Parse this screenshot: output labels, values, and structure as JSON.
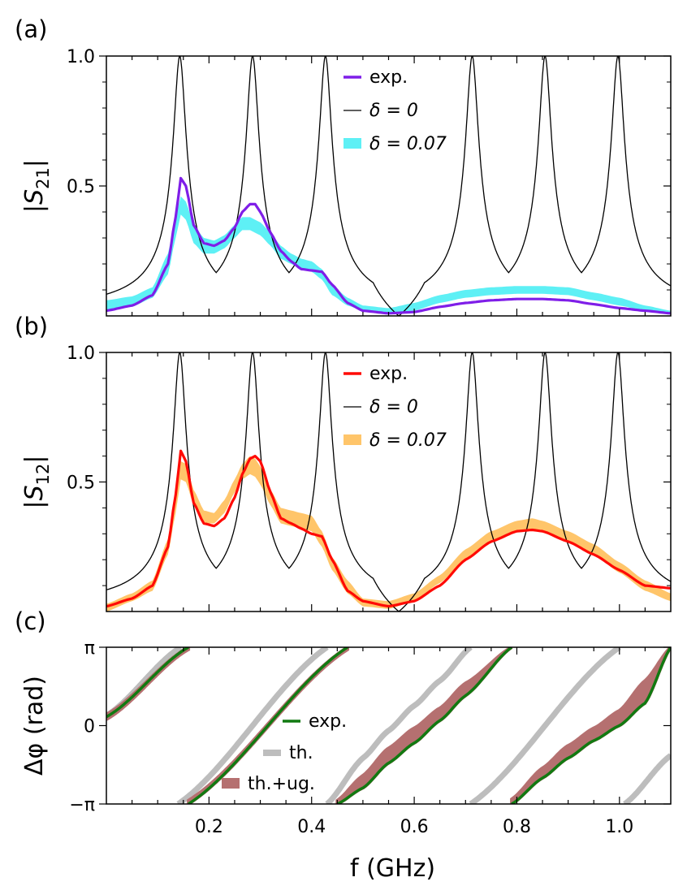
{
  "chart_data": [
    {
      "panel": "(a)",
      "type": "line",
      "ylabel_base": "|S",
      "ylabel_sub": "21",
      "ylabel_end": "|",
      "xlim": [
        0.0,
        1.1
      ],
      "ylim": [
        0.0,
        1.0
      ],
      "yticks": [
        {
          "value": 0.5,
          "label": "0.5"
        },
        {
          "value": 1.0,
          "label": "1.0"
        }
      ],
      "legend": {
        "position": "upper-center",
        "entries": [
          "exp.",
          "δ = 0",
          "δ = 0.07"
        ]
      },
      "colors": {
        "exp": "#7f1ee8",
        "theory": "#000000",
        "band": "#5ef0f5"
      },
      "series": [
        {
          "name": "exp.",
          "x": [
            0.0,
            0.05,
            0.09,
            0.12,
            0.135,
            0.145,
            0.155,
            0.17,
            0.19,
            0.21,
            0.23,
            0.25,
            0.265,
            0.28,
            0.29,
            0.3,
            0.32,
            0.34,
            0.36,
            0.38,
            0.4,
            0.42,
            0.44,
            0.47,
            0.5,
            0.55,
            0.6,
            0.65,
            0.7,
            0.75,
            0.8,
            0.85,
            0.9,
            0.95,
            1.0,
            1.05,
            1.1
          ],
          "y": [
            0.02,
            0.04,
            0.08,
            0.2,
            0.38,
            0.53,
            0.5,
            0.35,
            0.28,
            0.27,
            0.29,
            0.34,
            0.4,
            0.43,
            0.43,
            0.4,
            0.32,
            0.25,
            0.21,
            0.18,
            0.175,
            0.17,
            0.12,
            0.05,
            0.02,
            0.01,
            0.015,
            0.035,
            0.05,
            0.06,
            0.065,
            0.065,
            0.06,
            0.045,
            0.03,
            0.02,
            0.01
          ]
        },
        {
          "name": "δ = 0.07",
          "band_offset": 0.1,
          "x": [
            0.0,
            0.05,
            0.09,
            0.12,
            0.135,
            0.145,
            0.155,
            0.17,
            0.19,
            0.21,
            0.23,
            0.25,
            0.265,
            0.28,
            0.29,
            0.3,
            0.32,
            0.34,
            0.36,
            0.38,
            0.4,
            0.42,
            0.44,
            0.47,
            0.5,
            0.55,
            0.6,
            0.65,
            0.7,
            0.75,
            0.8,
            0.85,
            0.9,
            0.95,
            1.0,
            1.05,
            1.1
          ],
          "lower": [
            0.02,
            0.035,
            0.07,
            0.16,
            0.3,
            0.39,
            0.37,
            0.28,
            0.24,
            0.24,
            0.26,
            0.3,
            0.33,
            0.33,
            0.32,
            0.31,
            0.27,
            0.22,
            0.2,
            0.18,
            0.17,
            0.14,
            0.08,
            0.04,
            0.02,
            0.01,
            0.02,
            0.05,
            0.07,
            0.08,
            0.085,
            0.085,
            0.08,
            0.06,
            0.04,
            0.02,
            0.01
          ],
          "upper": [
            0.06,
            0.075,
            0.11,
            0.24,
            0.38,
            0.46,
            0.44,
            0.35,
            0.3,
            0.29,
            0.31,
            0.35,
            0.38,
            0.38,
            0.37,
            0.36,
            0.32,
            0.27,
            0.24,
            0.22,
            0.21,
            0.18,
            0.12,
            0.07,
            0.04,
            0.03,
            0.05,
            0.08,
            0.1,
            0.11,
            0.115,
            0.115,
            0.11,
            0.09,
            0.07,
            0.04,
            0.02
          ]
        }
      ]
    },
    {
      "panel": "(b)",
      "type": "line",
      "ylabel_base": "|S",
      "ylabel_sub": "12",
      "ylabel_end": "|",
      "xlim": [
        0.0,
        1.1
      ],
      "ylim": [
        0.0,
        1.0
      ],
      "yticks": [
        {
          "value": 0.5,
          "label": "0.5"
        },
        {
          "value": 1.0,
          "label": "1.0"
        }
      ],
      "legend": {
        "position": "upper-center",
        "entries": [
          "exp.",
          "δ = 0",
          "δ = 0.07"
        ]
      },
      "colors": {
        "exp": "#ff0a05",
        "theory": "#000000",
        "band": "#ffc56a"
      },
      "series": [
        {
          "name": "exp.",
          "x": [
            0.0,
            0.05,
            0.09,
            0.12,
            0.135,
            0.145,
            0.155,
            0.17,
            0.19,
            0.21,
            0.23,
            0.25,
            0.265,
            0.28,
            0.29,
            0.3,
            0.32,
            0.34,
            0.36,
            0.38,
            0.4,
            0.42,
            0.44,
            0.47,
            0.5,
            0.55,
            0.6,
            0.65,
            0.7,
            0.75,
            0.8,
            0.83,
            0.85,
            0.9,
            0.95,
            1.0,
            1.05,
            1.1
          ],
          "y": [
            0.02,
            0.05,
            0.1,
            0.25,
            0.45,
            0.62,
            0.58,
            0.42,
            0.34,
            0.33,
            0.36,
            0.44,
            0.53,
            0.59,
            0.6,
            0.58,
            0.46,
            0.36,
            0.34,
            0.32,
            0.3,
            0.29,
            0.2,
            0.08,
            0.04,
            0.02,
            0.04,
            0.1,
            0.2,
            0.27,
            0.31,
            0.315,
            0.31,
            0.27,
            0.22,
            0.16,
            0.1,
            0.09
          ]
        },
        {
          "name": "δ = 0.07",
          "x": [
            0.0,
            0.05,
            0.09,
            0.12,
            0.135,
            0.145,
            0.155,
            0.17,
            0.19,
            0.21,
            0.23,
            0.25,
            0.265,
            0.28,
            0.29,
            0.3,
            0.32,
            0.34,
            0.36,
            0.38,
            0.4,
            0.42,
            0.44,
            0.47,
            0.5,
            0.55,
            0.6,
            0.65,
            0.7,
            0.75,
            0.8,
            0.83,
            0.85,
            0.9,
            0.95,
            1.0,
            1.05,
            1.1
          ],
          "lower": [
            0.0,
            0.04,
            0.08,
            0.22,
            0.38,
            0.51,
            0.5,
            0.41,
            0.34,
            0.34,
            0.38,
            0.46,
            0.51,
            0.53,
            0.52,
            0.49,
            0.41,
            0.34,
            0.33,
            0.32,
            0.31,
            0.25,
            0.16,
            0.07,
            0.02,
            0.01,
            0.04,
            0.11,
            0.2,
            0.27,
            0.31,
            0.32,
            0.31,
            0.27,
            0.22,
            0.15,
            0.08,
            0.04
          ],
          "upper": [
            0.03,
            0.07,
            0.12,
            0.28,
            0.45,
            0.58,
            0.57,
            0.47,
            0.39,
            0.38,
            0.43,
            0.51,
            0.57,
            0.6,
            0.59,
            0.56,
            0.47,
            0.4,
            0.39,
            0.38,
            0.37,
            0.31,
            0.21,
            0.12,
            0.05,
            0.04,
            0.07,
            0.14,
            0.24,
            0.31,
            0.35,
            0.36,
            0.35,
            0.31,
            0.26,
            0.19,
            0.12,
            0.07
          ]
        }
      ]
    },
    {
      "panel": "(c)",
      "type": "line",
      "ylabel": "Δφ (rad)",
      "xlabel": "f (GHz)",
      "xlim": [
        0.0,
        1.1
      ],
      "ylim": [
        -3.14159,
        3.14159
      ],
      "yticks": [
        {
          "value": 3.14159,
          "label": "π"
        },
        {
          "value": 0.0,
          "label": "0"
        },
        {
          "value": -3.14159,
          "label": "−π"
        }
      ],
      "xticks": [
        {
          "value": 0.2,
          "label": "0.2"
        },
        {
          "value": 0.4,
          "label": "0.4"
        },
        {
          "value": 0.6,
          "label": "0.6"
        },
        {
          "value": 0.8,
          "label": "0.8"
        },
        {
          "value": 1.0,
          "label": "1.0"
        }
      ],
      "legend": {
        "position": "lower-center",
        "entries": [
          "exp.",
          "th.",
          "th.+ug."
        ]
      },
      "colors": {
        "exp": "#117a11",
        "th": "#bdbdbd",
        "thug": "#b57070"
      },
      "series": [
        {
          "name": "exp.",
          "segments": [
            {
              "x": [
                0.0,
                0.16
              ],
              "y": [
                0.35,
                3.14159
              ]
            },
            {
              "x": [
                0.16,
                0.47
              ],
              "y": [
                -3.14159,
                3.14159
              ]
            },
            {
              "x": [
                0.45,
                0.5,
                0.55,
                0.6,
                0.65,
                0.7,
                0.79
              ],
              "y": [
                -3.14159,
                -2.5,
                -1.5,
                -0.7,
                0.2,
                1.2,
                3.14159
              ]
            },
            {
              "x": [
                0.79,
                0.85,
                0.9,
                0.95,
                1.0,
                1.05,
                1.1
              ],
              "y": [
                -3.14159,
                -2.1,
                -1.3,
                -0.6,
                0.0,
                0.9,
                3.14159
              ]
            }
          ]
        },
        {
          "name": "th.",
          "segments": [
            {
              "x": [
                0.0,
                0.145
              ],
              "y": [
                0.4,
                3.14159
              ]
            },
            {
              "x": [
                0.14,
                0.43
              ],
              "y": [
                -3.14159,
                3.14159
              ]
            },
            {
              "x": [
                0.43,
                0.5,
                0.55,
                0.6,
                0.65,
                0.71
              ],
              "y": [
                -3.14159,
                -1.3,
                -0.2,
                0.8,
                1.8,
                3.14159
              ]
            },
            {
              "x": [
                0.71,
                1.0
              ],
              "y": [
                -3.14159,
                3.14159
              ]
            },
            {
              "x": [
                1.01,
                1.1
              ],
              "y": [
                -3.14159,
                -1.2
              ]
            }
          ]
        },
        {
          "name": "th.+ug.",
          "bands": [
            {
              "x": [
                0.0,
                0.16
              ],
              "lower": [
                0.25,
                3.05
              ],
              "upper": [
                0.45,
                3.14159
              ]
            },
            {
              "x": [
                0.16,
                0.47
              ],
              "lower": [
                -3.14159,
                3.05
              ],
              "upper": [
                -3.0,
                3.14159
              ]
            },
            {
              "x": [
                0.45,
                0.5,
                0.55,
                0.6,
                0.65,
                0.7,
                0.79
              ],
              "lower": [
                -3.14159,
                -2.5,
                -1.5,
                -0.7,
                0.2,
                1.2,
                3.14159
              ],
              "upper": [
                -3.0,
                -2.0,
                -0.9,
                -0.1,
                0.7,
                1.7,
                3.14159
              ]
            },
            {
              "x": [
                0.79,
                0.85,
                0.9,
                0.95,
                1.0,
                1.05,
                1.1
              ],
              "lower": [
                -3.14159,
                -2.1,
                -1.3,
                -0.6,
                0.0,
                0.9,
                3.14159
              ],
              "upper": [
                -2.95,
                -1.7,
                -0.8,
                -0.1,
                0.6,
                1.8,
                3.14159
              ]
            }
          ]
        }
      ]
    }
  ],
  "theory_peaks_ghz": [
    0.143,
    0.285,
    0.427,
    0.713,
    0.855,
    0.997
  ]
}
